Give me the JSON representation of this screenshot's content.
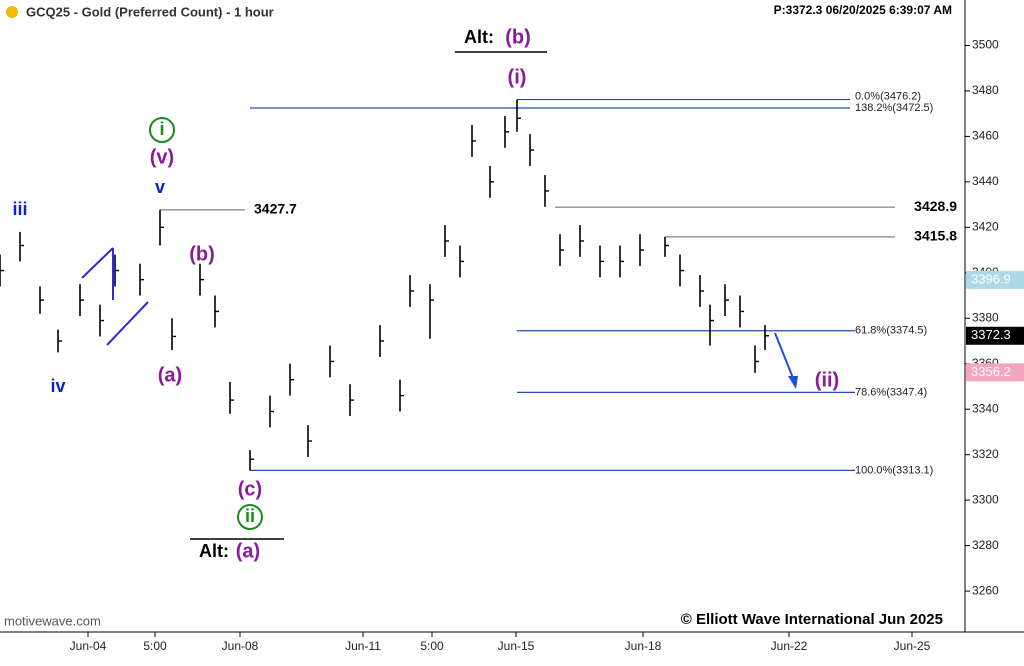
{
  "chart_data": {
    "type": "ohlc",
    "title": "GCQ25 - Gold (Preferred Count) - 1 hour",
    "info": "P:3372.3  06/20/2025 6:39:07 AM",
    "source": "motivewave.com",
    "copyright": "© Elliott Wave International Jun 2025",
    "color": "#000000",
    "x": [
      0,
      20,
      40,
      58,
      80,
      100,
      115,
      140,
      160,
      172,
      200,
      215,
      230,
      250,
      270,
      290,
      308,
      330,
      350,
      380,
      400,
      410,
      430,
      445,
      460,
      472,
      490,
      505,
      517,
      530,
      545,
      560,
      580,
      600,
      620,
      640,
      665,
      680,
      700,
      710,
      725,
      740,
      755,
      765
    ],
    "high": [
      3408,
      3418,
      3394,
      3375,
      3395,
      3386,
      3408,
      3404,
      3427.7,
      3380,
      3404,
      3390,
      3352,
      3322,
      3346,
      3360,
      3333,
      3368,
      3351,
      3377,
      3353,
      3399,
      3395,
      3421,
      3412,
      3465,
      3447,
      3469,
      3476.2,
      3461,
      3443,
      3417,
      3421,
      3412,
      3412,
      3417,
      3415.8,
      3408,
      3399,
      3386,
      3395,
      3390,
      3368,
      3377
    ],
    "low": [
      3394,
      3405,
      3382,
      3365,
      3381,
      3372,
      3394,
      3390,
      3412,
      3366,
      3390,
      3376,
      3338,
      3313.1,
      3332,
      3346,
      3319,
      3354,
      3337,
      3363,
      3339,
      3385,
      3371,
      3407,
      3398,
      3451,
      3433,
      3455,
      3462,
      3447,
      3429,
      3403,
      3407,
      3398,
      3398,
      3403,
      3407,
      3394,
      3385,
      3368,
      3381,
      3376,
      3356,
      3366
    ],
    "close": [
      3401,
      3412,
      3388,
      3370,
      3388,
      3379,
      3401,
      3397,
      3420,
      3372,
      3397,
      3383,
      3344,
      3318,
      3339,
      3353,
      3326,
      3361,
      3344,
      3370,
      3346,
      3392,
      3388,
      3414,
      3405,
      3458,
      3440,
      3462,
      3468,
      3454,
      3436,
      3410,
      3414,
      3405,
      3405,
      3410,
      3412,
      3401,
      3392,
      3379,
      3388,
      3383,
      3361,
      3372.3
    ],
    "xlim": [
      0,
      965
    ],
    "xticks": [
      {
        "value": 88,
        "label": "Jun-04"
      },
      {
        "value": 155,
        "label": "5:00"
      },
      {
        "value": 240,
        "label": "Jun-08"
      },
      {
        "value": 363,
        "label": "Jun-11"
      },
      {
        "value": 432,
        "label": "5:00"
      },
      {
        "value": 516,
        "label": "Jun-15"
      },
      {
        "value": 643,
        "label": "Jun-18"
      },
      {
        "value": 789,
        "label": "Jun-22"
      },
      {
        "value": 912,
        "label": "Jun-25"
      }
    ],
    "ylim": [
      3242,
      3520
    ],
    "yticks": [
      3260,
      3280,
      3300,
      3320,
      3340,
      3360,
      3380,
      3400,
      3420,
      3440,
      3460,
      3480,
      3500
    ],
    "fib_levels": [
      {
        "value": 3476.2,
        "label": "0.0%(3476.2)",
        "color": "#1f4fa8"
      },
      {
        "value": 3472.5,
        "label": "138.2%(3472.5)",
        "color": "#1f4fa8"
      },
      {
        "value": 3374.5,
        "label": "61.8%(3374.5)",
        "color": "#1f4fa8"
      },
      {
        "value": 3347.4,
        "label": "78.6%(3347.4)",
        "color": "#1f4fa8"
      },
      {
        "value": 3313.1,
        "label": "100.0%(3313.1)",
        "color": "#1f4fa8"
      }
    ],
    "price_levels": [
      {
        "value": 3427.7,
        "label": "3427.7"
      },
      {
        "value": 3428.9,
        "label": "3428.9"
      },
      {
        "value": 3415.8,
        "label": "3415.8"
      }
    ],
    "price_markers": [
      {
        "value": 3396.9,
        "label": "3396.9",
        "color": "#add8e6"
      },
      {
        "value": 3372.3,
        "label": "3372.3",
        "color": "#000000"
      },
      {
        "value": 3356.2,
        "label": "3356.2",
        "color": "#f4a6c0"
      }
    ],
    "annotations": [
      {
        "text": "iii",
        "color": "#0a1fd6"
      },
      {
        "text": "iv",
        "color": "#0a1fd6"
      },
      {
        "text": "v",
        "color": "#0a1fd6"
      },
      {
        "text": "(v)",
        "color": "#8b1a9b"
      },
      {
        "text": "i",
        "color": "#1a8a1a",
        "shape": "circle"
      },
      {
        "text": "(b)",
        "color": "#8b1a9b"
      },
      {
        "text": "(a)",
        "color": "#8b1a9b"
      },
      {
        "text": "(c)",
        "color": "#8b1a9b"
      },
      {
        "text": "ii",
        "color": "#1a8a1a",
        "shape": "circle"
      },
      {
        "text": "Alt:",
        "color": "#000000"
      },
      {
        "text": "(a)",
        "color": "#8b1a9b"
      },
      {
        "text": "Alt:",
        "color": "#000000"
      },
      {
        "text": "(b)",
        "color": "#8b1a9b"
      },
      {
        "text": "(i)",
        "color": "#8b1a9b"
      },
      {
        "text": "(ii)",
        "color": "#8b1a9b"
      }
    ]
  }
}
